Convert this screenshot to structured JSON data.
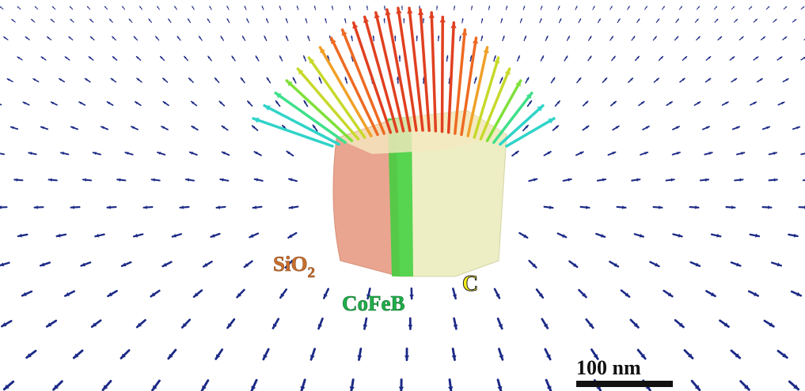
{
  "labels": {
    "sio2": "SiO",
    "sio2_sub": "2",
    "cofeb": "CoFeB",
    "c": "C"
  },
  "scale_bar": {
    "label": "100 nm"
  }
}
